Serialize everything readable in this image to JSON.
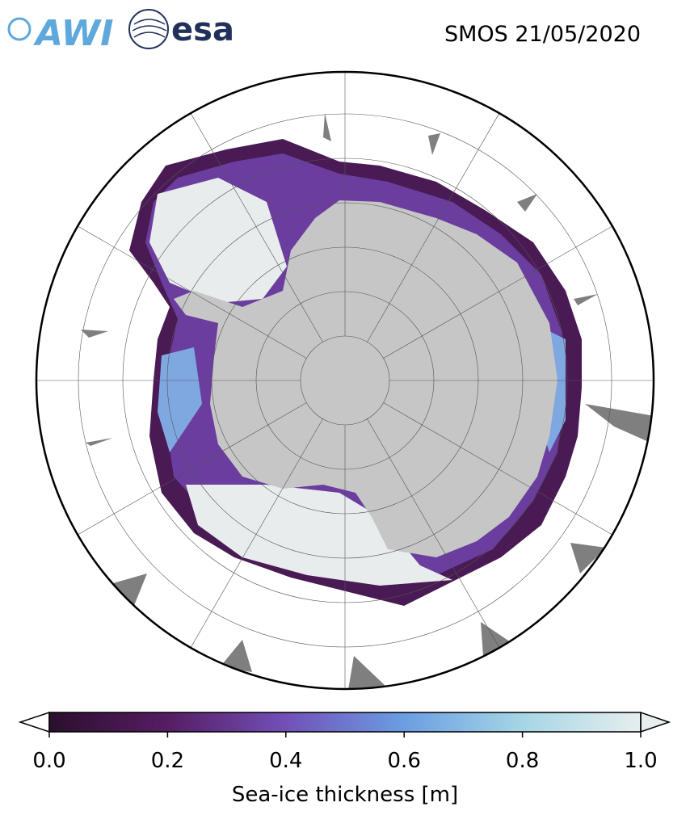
{
  "header": {
    "logos": [
      "AWI",
      "esa"
    ],
    "title": "SMOS 21/05/2020"
  },
  "colorbar": {
    "label": "Sea-ice thickness [m]",
    "lim": [
      0,
      1
    ],
    "ticks": [
      {
        "value": 0,
        "label": "0.0"
      },
      0.2,
      0.4,
      0.6,
      0.8,
      {
        "value": 1,
        "label": "1.0"
      }
    ],
    "colors": [
      "#2b0f2d",
      "#561d63",
      "#7250b8",
      "#6b9ee2",
      "#a5d6e5",
      "#e6eeee"
    ]
  }
}
